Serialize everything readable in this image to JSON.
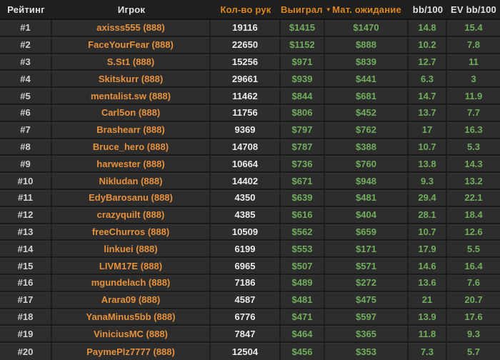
{
  "colors": {
    "background": "#2d2d2d",
    "header_background": "#1f1f1f",
    "accent_orange": "#dd871f",
    "player_orange": "#e6913c",
    "value_green": "#72ad5e",
    "text_white": "#e3e3e3",
    "divider_dark": "#1e1e1e"
  },
  "table": {
    "sort_icon": "▼",
    "sorted_column": "Выиграл",
    "columns": [
      {
        "key": "rank",
        "label": "Рейтинг",
        "style": "white"
      },
      {
        "key": "player",
        "label": "Игрок",
        "style": "white"
      },
      {
        "key": "hands",
        "label": "Кол-во рук",
        "style": "orange"
      },
      {
        "key": "won",
        "label": "Выиграл",
        "style": "orange"
      },
      {
        "key": "ev",
        "label": "Мат. ожидание",
        "style": "orange"
      },
      {
        "key": "bb100",
        "label": "bb/100",
        "style": "white"
      },
      {
        "key": "evbb100",
        "label": "EV bb/100",
        "style": "white"
      }
    ],
    "rows": [
      {
        "rank": "#1",
        "player": "axisss555 (888)",
        "hands": "19116",
        "won": "$1415",
        "ev": "$1470",
        "bb100": "14.8",
        "evbb100": "15.4"
      },
      {
        "rank": "#2",
        "player": "FaceYourFear (888)",
        "hands": "22650",
        "won": "$1152",
        "ev": "$888",
        "bb100": "10.2",
        "evbb100": "7.8"
      },
      {
        "rank": "#3",
        "player": "S.St1 (888)",
        "hands": "15256",
        "won": "$971",
        "ev": "$839",
        "bb100": "12.7",
        "evbb100": "11"
      },
      {
        "rank": "#4",
        "player": "Skitskurr (888)",
        "hands": "29661",
        "won": "$939",
        "ev": "$441",
        "bb100": "6.3",
        "evbb100": "3"
      },
      {
        "rank": "#5",
        "player": "mentalist.sw (888)",
        "hands": "11462",
        "won": "$844",
        "ev": "$681",
        "bb100": "14.7",
        "evbb100": "11.9"
      },
      {
        "rank": "#6",
        "player": "Carl5on (888)",
        "hands": "11756",
        "won": "$806",
        "ev": "$452",
        "bb100": "13.7",
        "evbb100": "7.7"
      },
      {
        "rank": "#7",
        "player": "Brashearr (888)",
        "hands": "9369",
        "won": "$797",
        "ev": "$762",
        "bb100": "17",
        "evbb100": "16.3"
      },
      {
        "rank": "#8",
        "player": "Bruce_hero (888)",
        "hands": "14708",
        "won": "$787",
        "ev": "$388",
        "bb100": "10.7",
        "evbb100": "5.3"
      },
      {
        "rank": "#9",
        "player": "harwester (888)",
        "hands": "10664",
        "won": "$736",
        "ev": "$760",
        "bb100": "13.8",
        "evbb100": "14.3"
      },
      {
        "rank": "#10",
        "player": "Nikludan (888)",
        "hands": "14402",
        "won": "$671",
        "ev": "$948",
        "bb100": "9.3",
        "evbb100": "13.2"
      },
      {
        "rank": "#11",
        "player": "EdyBarosanu (888)",
        "hands": "4350",
        "won": "$639",
        "ev": "$481",
        "bb100": "29.4",
        "evbb100": "22.1"
      },
      {
        "rank": "#12",
        "player": "crazyquilt (888)",
        "hands": "4385",
        "won": "$616",
        "ev": "$404",
        "bb100": "28.1",
        "evbb100": "18.4"
      },
      {
        "rank": "#13",
        "player": "freeChurros (888)",
        "hands": "10509",
        "won": "$562",
        "ev": "$659",
        "bb100": "10.7",
        "evbb100": "12.6"
      },
      {
        "rank": "#14",
        "player": "linkuei (888)",
        "hands": "6199",
        "won": "$553",
        "ev": "$171",
        "bb100": "17.9",
        "evbb100": "5.5"
      },
      {
        "rank": "#15",
        "player": "LIVM17E (888)",
        "hands": "6965",
        "won": "$507",
        "ev": "$571",
        "bb100": "14.6",
        "evbb100": "16.4"
      },
      {
        "rank": "#16",
        "player": "mgundelach (888)",
        "hands": "7186",
        "won": "$489",
        "ev": "$272",
        "bb100": "13.6",
        "evbb100": "7.6"
      },
      {
        "rank": "#17",
        "player": "Arara09 (888)",
        "hands": "4587",
        "won": "$481",
        "ev": "$475",
        "bb100": "21",
        "evbb100": "20.7"
      },
      {
        "rank": "#18",
        "player": "YanaMinus5bb (888)",
        "hands": "6776",
        "won": "$471",
        "ev": "$597",
        "bb100": "13.9",
        "evbb100": "17.6"
      },
      {
        "rank": "#19",
        "player": "ViniciusMC (888)",
        "hands": "7847",
        "won": "$464",
        "ev": "$365",
        "bb100": "11.8",
        "evbb100": "9.3"
      },
      {
        "rank": "#20",
        "player": "PaymePlz7777 (888)",
        "hands": "12504",
        "won": "$456",
        "ev": "$353",
        "bb100": "7.3",
        "evbb100": "5.7"
      }
    ]
  }
}
